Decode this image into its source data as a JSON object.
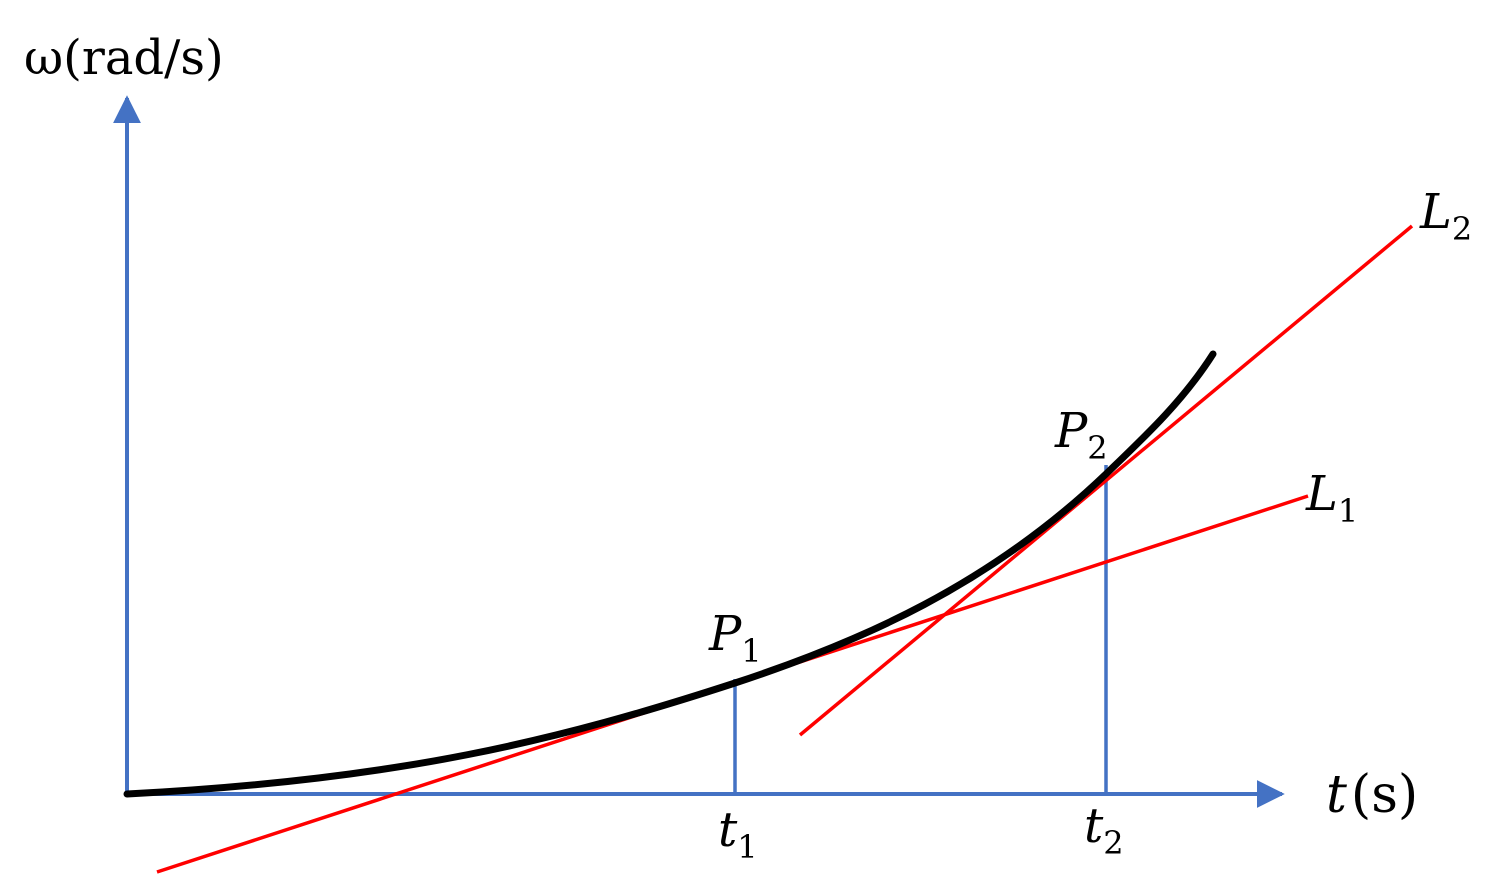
{
  "figure": {
    "y_axis_label": "ω(rad/s)",
    "x_axis_label": {
      "var": "t",
      "unit": "(s)"
    },
    "ticks": [
      {
        "var": "t",
        "sub": "1"
      },
      {
        "var": "t",
        "sub": "2"
      }
    ],
    "points": [
      {
        "var": "P",
        "sub": "1"
      },
      {
        "var": "P",
        "sub": "2"
      }
    ],
    "lines": [
      {
        "var": "L",
        "sub": "1"
      },
      {
        "var": "L",
        "sub": "2"
      }
    ],
    "colors": {
      "axes": "#4472c4",
      "curve": "#000000",
      "tangents": "#ff0000",
      "guides": "#4472c4"
    }
  }
}
